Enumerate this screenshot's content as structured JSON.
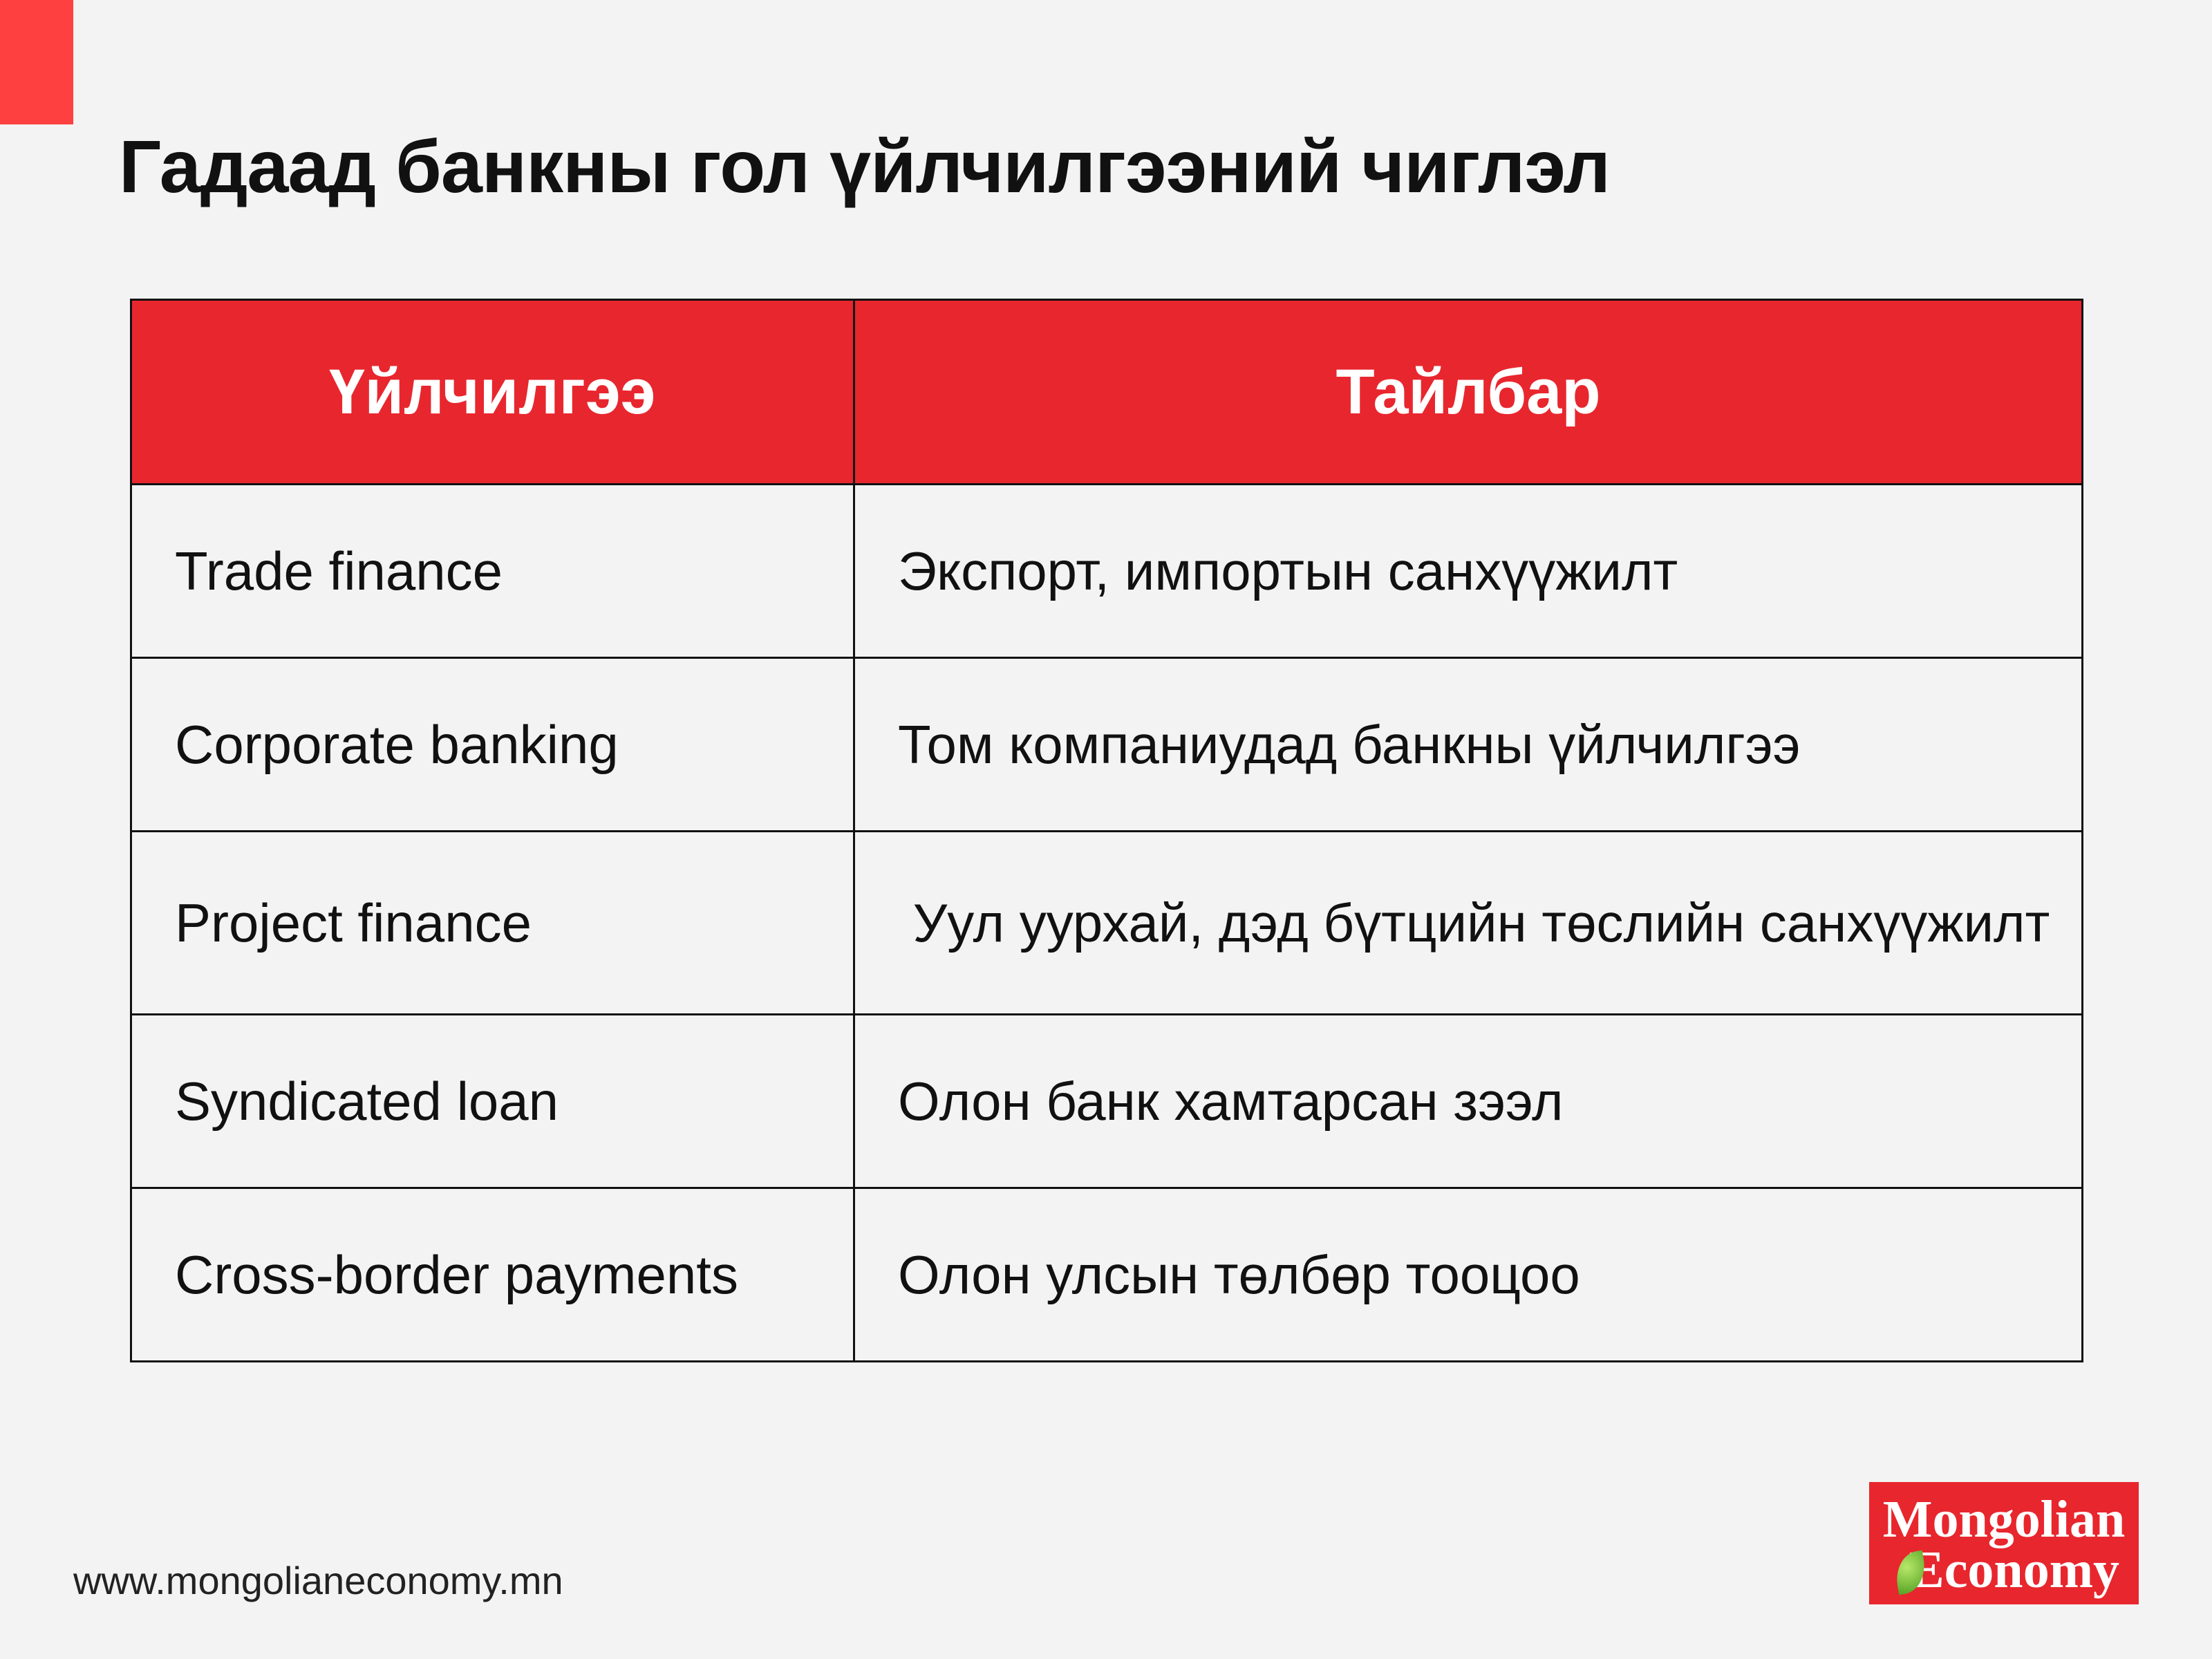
{
  "title": "Гадаад банкны гол үйлчилгээний чиглэл",
  "table": {
    "headers": [
      "Үйлчилгээ",
      "Тайлбар"
    ],
    "rows": [
      [
        "Trade finance",
        "Экспорт, импортын санхүүжилт"
      ],
      [
        "Corporate banking",
        "Том компаниудад банкны үйлчилгээ"
      ],
      [
        "Project finance",
        " Уул уурхай, дэд бүтцийн төслийн санхүүжилт"
      ],
      [
        "Syndicated loan",
        "Олон банк хамтарсан зээл"
      ],
      [
        "Cross-border payments",
        "Олон улсын төлбөр тооцоо"
      ]
    ]
  },
  "footer": {
    "url": "www.mongolianeconomy.mn"
  },
  "logo": {
    "line1": "Mongolian",
    "line2": "Economy",
    "icon": "leaf-icon"
  },
  "colors": {
    "accent": "#e8262e",
    "corner": "#ff4040",
    "background": "#f3f3f3"
  }
}
